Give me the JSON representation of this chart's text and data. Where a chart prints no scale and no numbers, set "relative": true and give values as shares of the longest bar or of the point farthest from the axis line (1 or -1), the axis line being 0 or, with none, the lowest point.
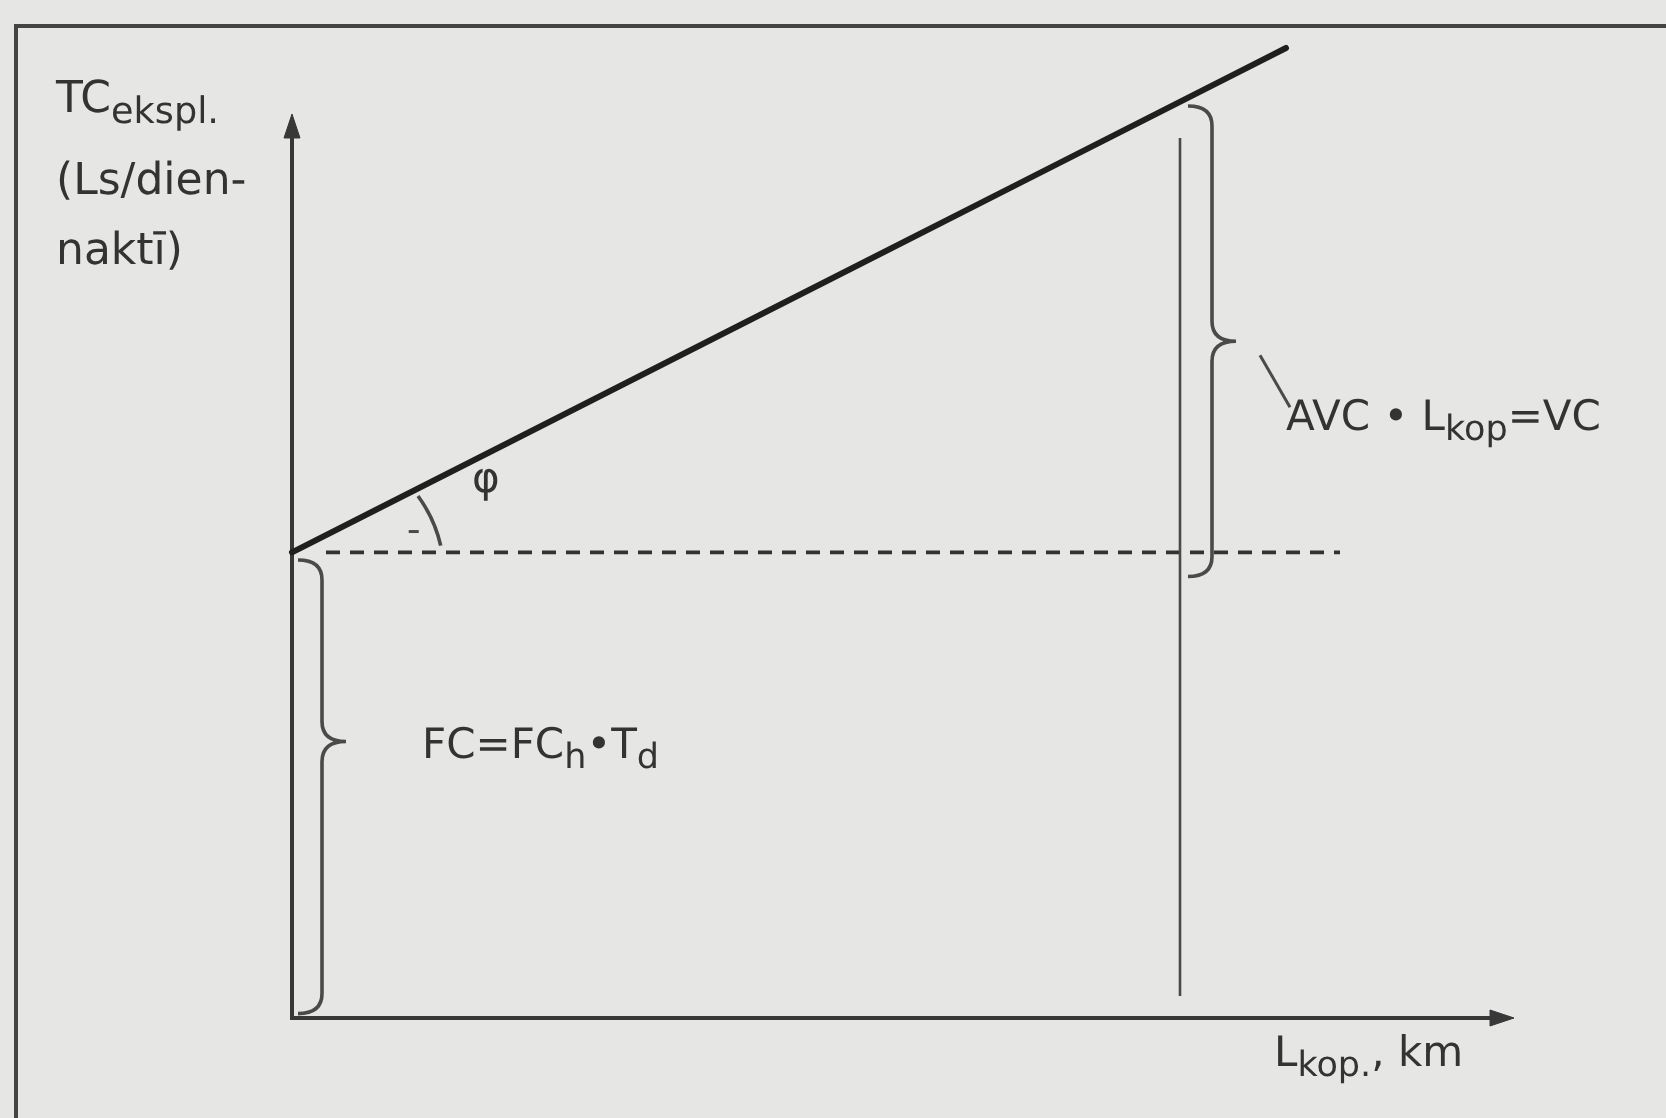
{
  "chart_data": {
    "type": "line",
    "xlabel": "L$_{kop.}$, km",
    "ylabel": "TC$_{ekspl.}$ (Ls/dien-naktī)",
    "categories": [
      null,
      null
    ],
    "series": [
      {
        "color": "#1f1f1f",
        "values": [
          0.48,
          1
        ]
      }
    ],
    "relative": true,
    "marker": "none",
    "ref_lines": [
      {
        "axis": "y",
        "value": 0.48,
        "line_style": "dashed",
        "color": "#333333"
      }
    ],
    "annotations": [
      "φ",
      "FC=FC$_{h}$•T$_{d}$",
      "AVC • L$_{kop}$=VC"
    ]
  }
}
